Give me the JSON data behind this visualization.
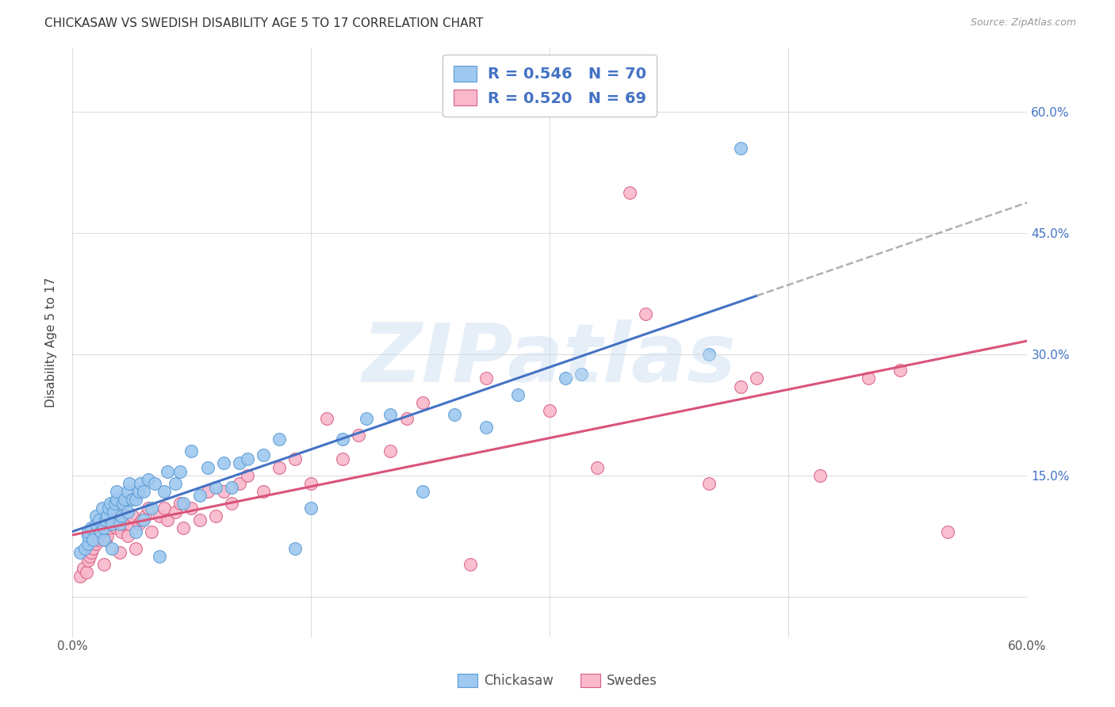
{
  "title": "CHICKASAW VS SWEDISH DISABILITY AGE 5 TO 17 CORRELATION CHART",
  "source": "Source: ZipAtlas.com",
  "ylabel": "Disability Age 5 to 17",
  "x_ticks": [
    0.0,
    0.15,
    0.3,
    0.45,
    0.6
  ],
  "y_ticks": [
    0.0,
    0.15,
    0.3,
    0.45,
    0.6
  ],
  "x_tick_labels": [
    "0.0%",
    "",
    "",
    "",
    "60.0%"
  ],
  "y_tick_labels": [
    "",
    "15.0%",
    "30.0%",
    "45.0%",
    "60.0%"
  ],
  "xlim": [
    0.0,
    0.6
  ],
  "ylim": [
    -0.05,
    0.68
  ],
  "chickasaw_color": "#9EC8EF",
  "chickasaw_edge": "#5B9BD5",
  "swedes_color": "#F9B8CC",
  "swedes_edge": "#D95F82",
  "chickasaw_R": 0.546,
  "chickasaw_N": 70,
  "swedes_R": 0.52,
  "swedes_N": 69,
  "reg_blue": "#4472C4",
  "reg_pink": "#D9547A",
  "reg_dash": "#B0B0B0",
  "legend_label1": "Chickasaw",
  "legend_label2": "Swedes",
  "chickasaw_x": [
    0.005,
    0.008,
    0.01,
    0.01,
    0.01,
    0.012,
    0.013,
    0.015,
    0.015,
    0.017,
    0.018,
    0.019,
    0.02,
    0.02,
    0.021,
    0.022,
    0.023,
    0.024,
    0.025,
    0.025,
    0.026,
    0.027,
    0.028,
    0.028,
    0.03,
    0.031,
    0.032,
    0.033,
    0.035,
    0.035,
    0.036,
    0.038,
    0.04,
    0.04,
    0.042,
    0.043,
    0.045,
    0.045,
    0.048,
    0.05,
    0.052,
    0.055,
    0.058,
    0.06,
    0.065,
    0.068,
    0.07,
    0.075,
    0.08,
    0.085,
    0.09,
    0.095,
    0.1,
    0.105,
    0.11,
    0.12,
    0.13,
    0.14,
    0.15,
    0.17,
    0.185,
    0.2,
    0.22,
    0.24,
    0.26,
    0.28,
    0.31,
    0.32,
    0.4,
    0.42
  ],
  "chickasaw_y": [
    0.055,
    0.06,
    0.065,
    0.075,
    0.08,
    0.085,
    0.07,
    0.09,
    0.1,
    0.095,
    0.08,
    0.11,
    0.07,
    0.085,
    0.095,
    0.1,
    0.11,
    0.115,
    0.06,
    0.09,
    0.105,
    0.115,
    0.12,
    0.13,
    0.09,
    0.1,
    0.115,
    0.12,
    0.105,
    0.13,
    0.14,
    0.12,
    0.08,
    0.12,
    0.13,
    0.14,
    0.095,
    0.13,
    0.145,
    0.11,
    0.14,
    0.05,
    0.13,
    0.155,
    0.14,
    0.155,
    0.115,
    0.18,
    0.125,
    0.16,
    0.135,
    0.165,
    0.135,
    0.165,
    0.17,
    0.175,
    0.195,
    0.06,
    0.11,
    0.195,
    0.22,
    0.225,
    0.13,
    0.225,
    0.21,
    0.25,
    0.27,
    0.275,
    0.3,
    0.555
  ],
  "swedes_x": [
    0.005,
    0.007,
    0.009,
    0.01,
    0.011,
    0.012,
    0.013,
    0.015,
    0.016,
    0.018,
    0.019,
    0.02,
    0.021,
    0.022,
    0.023,
    0.024,
    0.025,
    0.026,
    0.028,
    0.03,
    0.031,
    0.032,
    0.033,
    0.035,
    0.036,
    0.038,
    0.04,
    0.042,
    0.044,
    0.046,
    0.048,
    0.05,
    0.055,
    0.058,
    0.06,
    0.065,
    0.068,
    0.07,
    0.075,
    0.08,
    0.085,
    0.09,
    0.095,
    0.1,
    0.105,
    0.11,
    0.12,
    0.13,
    0.14,
    0.15,
    0.16,
    0.17,
    0.18,
    0.2,
    0.21,
    0.22,
    0.25,
    0.26,
    0.3,
    0.33,
    0.35,
    0.36,
    0.4,
    0.42,
    0.43,
    0.47,
    0.5,
    0.52,
    0.55
  ],
  "swedes_y": [
    0.025,
    0.035,
    0.03,
    0.045,
    0.05,
    0.055,
    0.06,
    0.065,
    0.07,
    0.075,
    0.08,
    0.04,
    0.07,
    0.075,
    0.085,
    0.09,
    0.095,
    0.1,
    0.085,
    0.055,
    0.08,
    0.09,
    0.1,
    0.075,
    0.09,
    0.1,
    0.06,
    0.09,
    0.095,
    0.1,
    0.11,
    0.08,
    0.1,
    0.11,
    0.095,
    0.105,
    0.115,
    0.085,
    0.11,
    0.095,
    0.13,
    0.1,
    0.13,
    0.115,
    0.14,
    0.15,
    0.13,
    0.16,
    0.17,
    0.14,
    0.22,
    0.17,
    0.2,
    0.18,
    0.22,
    0.24,
    0.04,
    0.27,
    0.23,
    0.16,
    0.5,
    0.35,
    0.14,
    0.26,
    0.27,
    0.15,
    0.27,
    0.28,
    0.08
  ]
}
